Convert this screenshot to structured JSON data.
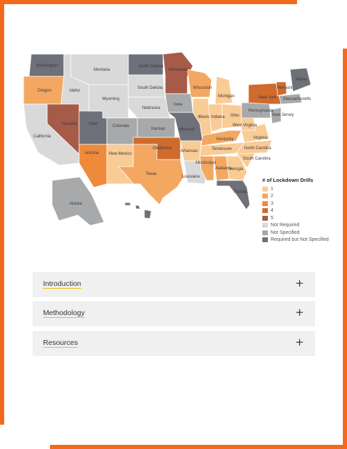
{
  "map": {
    "colors": {
      "1": "#f9cb95",
      "2": "#f4a761",
      "3": "#ef8a3b",
      "4": "#cf6b2d",
      "5": "#a65b48",
      "not_required": "#d9d9d9",
      "not_specified": "#a8a9ab",
      "required_not_specified": "#6e7179"
    },
    "states": [
      {
        "name": "Washington",
        "status": "required_not_specified"
      },
      {
        "name": "Oregon",
        "status": "2"
      },
      {
        "name": "California",
        "status": "not_required"
      },
      {
        "name": "Idaho",
        "status": "not_required"
      },
      {
        "name": "Nevada",
        "status": "5"
      },
      {
        "name": "Utah",
        "status": "required_not_specified"
      },
      {
        "name": "Arizona",
        "status": "3"
      },
      {
        "name": "Montana",
        "status": "not_required"
      },
      {
        "name": "Wyoming",
        "status": "not_required"
      },
      {
        "name": "Colorado",
        "status": "not_specified"
      },
      {
        "name": "New Mexico",
        "status": "1"
      },
      {
        "name": "North Dakota",
        "status": "required_not_specified"
      },
      {
        "name": "South Dakota",
        "status": "not_required"
      },
      {
        "name": "Nebraska",
        "status": "not_required"
      },
      {
        "name": "Kansas",
        "status": "not_specified"
      },
      {
        "name": "Oklahoma",
        "status": "4"
      },
      {
        "name": "Texas",
        "status": "2"
      },
      {
        "name": "Minnesota",
        "status": "5"
      },
      {
        "name": "Iowa",
        "status": "not_specified"
      },
      {
        "name": "Missouri",
        "status": "required_not_specified"
      },
      {
        "name": "Arkansas",
        "status": "1"
      },
      {
        "name": "Louisiana",
        "status": "not_required"
      },
      {
        "name": "Wisconsin",
        "status": "2"
      },
      {
        "name": "Illinois",
        "status": "1"
      },
      {
        "name": "Michigan",
        "status": "1"
      },
      {
        "name": "Indiana",
        "status": "1"
      },
      {
        "name": "Ohio",
        "status": "1"
      },
      {
        "name": "Kentucky",
        "status": "2"
      },
      {
        "name": "Tennessee",
        "status": "1"
      },
      {
        "name": "Mississippi",
        "status": "2"
      },
      {
        "name": "Alabama",
        "status": "2"
      },
      {
        "name": "Georgia",
        "status": "1"
      },
      {
        "name": "Florida",
        "status": "required_not_specified"
      },
      {
        "name": "South Carolina",
        "status": "1"
      },
      {
        "name": "North Carolina",
        "status": "1"
      },
      {
        "name": "Virginia",
        "status": "1"
      },
      {
        "name": "West Virginia",
        "status": "1"
      },
      {
        "name": "Pennsylvania",
        "status": "not_specified"
      },
      {
        "name": "New York",
        "status": "4"
      },
      {
        "name": "Vermont",
        "status": "4"
      },
      {
        "name": "Maine",
        "status": "required_not_specified"
      },
      {
        "name": "Massachusetts",
        "status": "not_specified"
      },
      {
        "name": "New Jersey",
        "status": "not_specified"
      },
      {
        "name": "Alaska",
        "status": "not_specified"
      },
      {
        "name": "Hawaii",
        "status": "required_not_specified"
      }
    ]
  },
  "legend": {
    "title": "# of Lockdown Drills",
    "items": [
      {
        "label": "1",
        "key": "1"
      },
      {
        "label": "2",
        "key": "2"
      },
      {
        "label": "3",
        "key": "3"
      },
      {
        "label": "4",
        "key": "4"
      },
      {
        "label": "5",
        "key": "5"
      },
      {
        "label": "Not Required",
        "key": "not_required"
      },
      {
        "label": "Not Specified",
        "key": "not_specified"
      },
      {
        "label": "Required but Not Specified",
        "key": "required_not_specified"
      }
    ]
  },
  "accordions": [
    {
      "label": "Introduction",
      "icon": "plus-icon"
    },
    {
      "label": "Methodology",
      "icon": "plus-icon"
    },
    {
      "label": "Resources",
      "icon": "plus-icon"
    }
  ],
  "accent": "#f26b1d"
}
